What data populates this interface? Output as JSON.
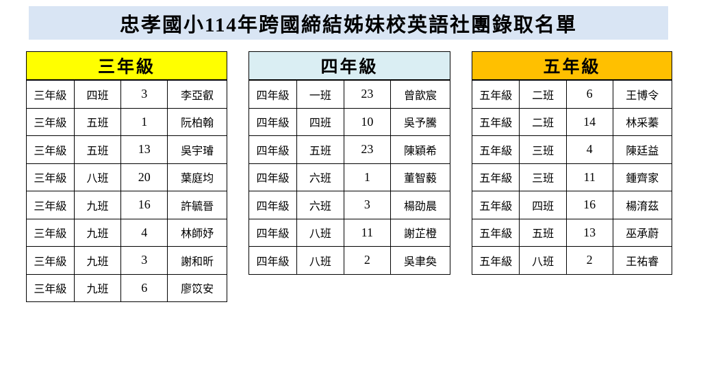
{
  "page": {
    "title": "忠孝國小114年跨國締結姊妹校英語社團錄取名單",
    "title_band_color": "#D9E5F4"
  },
  "tables": [
    {
      "header": "三年級",
      "header_color": "#FFFF00",
      "rows": [
        {
          "grade": "三年級",
          "class": "四班",
          "number": "3",
          "name": "李亞叡"
        },
        {
          "grade": "三年級",
          "class": "五班",
          "number": "1",
          "name": "阮柏翰"
        },
        {
          "grade": "三年級",
          "class": "五班",
          "number": "13",
          "name": "吳宇璿"
        },
        {
          "grade": "三年級",
          "class": "八班",
          "number": "20",
          "name": "葉庭均"
        },
        {
          "grade": "三年級",
          "class": "九班",
          "number": "16",
          "name": "許毓晉"
        },
        {
          "grade": "三年級",
          "class": "九班",
          "number": "4",
          "name": "林師妤"
        },
        {
          "grade": "三年級",
          "class": "九班",
          "number": "3",
          "name": "謝和昕"
        },
        {
          "grade": "三年級",
          "class": "九班",
          "number": "6",
          "name": "廖笖安"
        }
      ]
    },
    {
      "header": "四年級",
      "header_color": "#DAEEF3",
      "rows": [
        {
          "grade": "四年級",
          "class": "一班",
          "number": "23",
          "name": "曾歆宸"
        },
        {
          "grade": "四年級",
          "class": "四班",
          "number": "10",
          "name": "吳予騰"
        },
        {
          "grade": "四年級",
          "class": "五班",
          "number": "23",
          "name": "陳穎希"
        },
        {
          "grade": "四年級",
          "class": "六班",
          "number": "1",
          "name": "董智藙"
        },
        {
          "grade": "四年級",
          "class": "六班",
          "number": "3",
          "name": "楊劭晨"
        },
        {
          "grade": "四年級",
          "class": "八班",
          "number": "11",
          "name": "謝芷橙"
        },
        {
          "grade": "四年級",
          "class": "八班",
          "number": "2",
          "name": "吳聿奐"
        }
      ]
    },
    {
      "header": "五年級",
      "header_color": "#FFC000",
      "rows": [
        {
          "grade": "五年級",
          "class": "二班",
          "number": "6",
          "name": "王博令"
        },
        {
          "grade": "五年級",
          "class": "二班",
          "number": "14",
          "name": "林采蓁"
        },
        {
          "grade": "五年級",
          "class": "三班",
          "number": "4",
          "name": "陳廷益"
        },
        {
          "grade": "五年級",
          "class": "三班",
          "number": "11",
          "name": "鍾齊家"
        },
        {
          "grade": "五年級",
          "class": "四班",
          "number": "16",
          "name": "楊淯茲"
        },
        {
          "grade": "五年級",
          "class": "五班",
          "number": "13",
          "name": "巫承蔚"
        },
        {
          "grade": "五年級",
          "class": "八班",
          "number": "2",
          "name": "王祐睿"
        }
      ]
    }
  ]
}
